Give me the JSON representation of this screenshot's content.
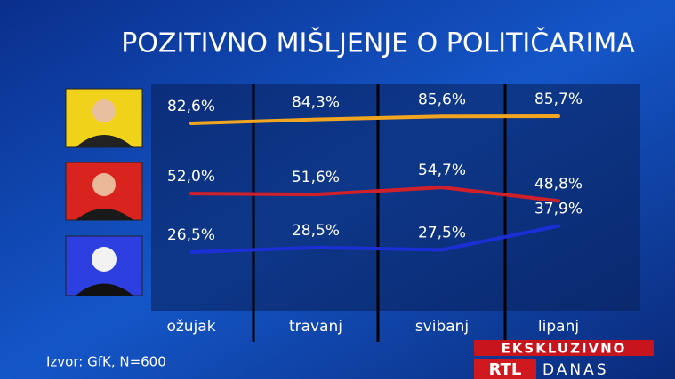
{
  "chart_data": {
    "type": "line",
    "title": "POZITIVNO MIŠLJENJE O POLITIČARIMA",
    "categories": [
      "ožujak",
      "travanj",
      "svibanj",
      "lipanj"
    ],
    "series": [
      {
        "color": "#f2a51e",
        "values": [
          82.6,
          84.3,
          85.6,
          85.7
        ],
        "value_labels": [
          "82,6%",
          "84,3%",
          "85,6%",
          "85,7%"
        ]
      },
      {
        "color": "#d0202a",
        "values": [
          52.0,
          51.6,
          54.7,
          48.8
        ],
        "value_labels": [
          "52,0%",
          "51,6%",
          "54,7%",
          "48,8%"
        ]
      },
      {
        "color": "#1c2fd6",
        "values": [
          26.5,
          28.5,
          27.5,
          37.9
        ],
        "value_labels": [
          "26,5%",
          "28,5%",
          "27,5%",
          "37,9%"
        ]
      }
    ],
    "source": "Izvor: GfK, N=600"
  },
  "logo": {
    "banner": "EKSKLUZIVNO",
    "brand": "RTL",
    "show": "DANAS"
  }
}
